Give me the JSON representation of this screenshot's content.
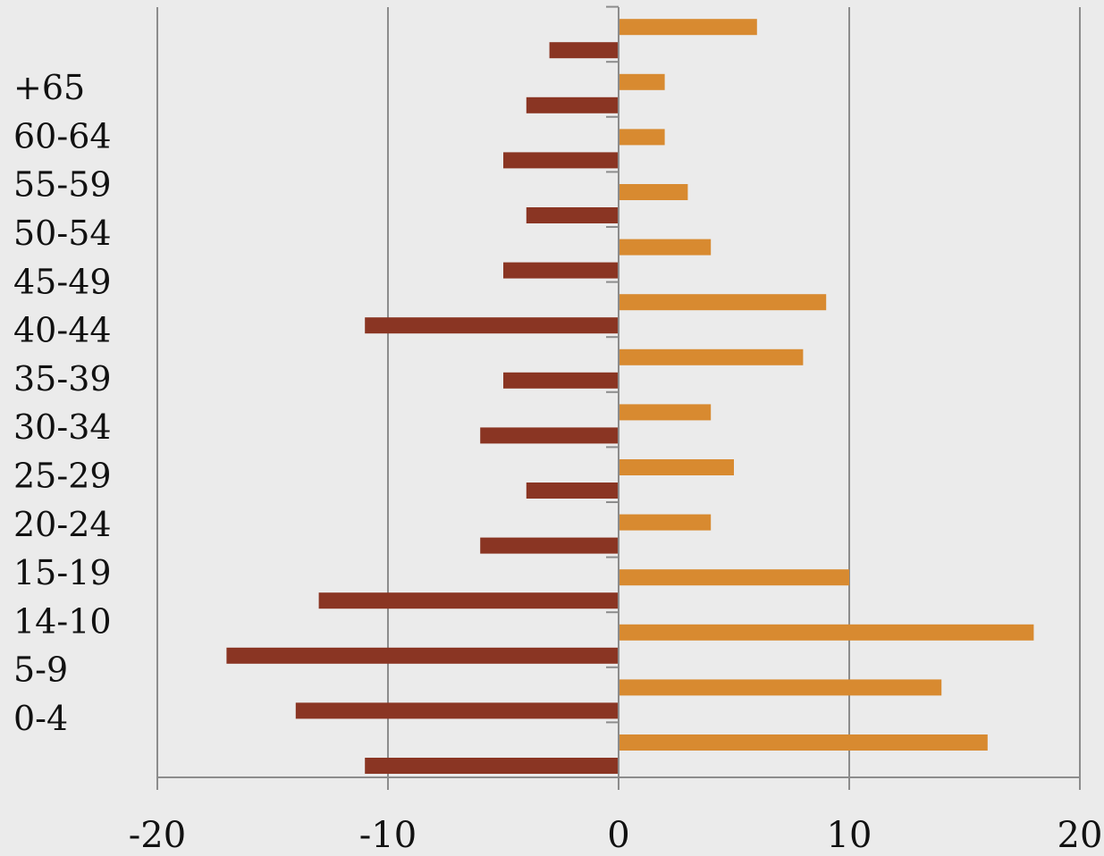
{
  "chart_data": {
    "type": "bar",
    "orientation": "horizontal",
    "categories": [
      "0-4",
      "5-9",
      "14-10",
      "15-19",
      "20-24",
      "25-29",
      "30-34",
      "35-39",
      "40-44",
      "45-49",
      "50-54",
      "55-59",
      "60-64",
      "+65"
    ],
    "series": [
      {
        "values": [
          -11,
          -14,
          -17,
          -13,
          -6,
          -4,
          -6,
          -5,
          -11,
          -5,
          -4,
          -5,
          -4,
          -3
        ]
      },
      {
        "values": [
          16,
          14,
          18,
          10,
          4,
          5,
          4,
          8,
          9,
          4,
          3,
          2,
          2,
          6
        ]
      }
    ],
    "xlim": [
      -20,
      20
    ],
    "x_ticks": [
      -20,
      -10,
      0,
      10,
      20
    ],
    "x_tick_labels": [
      "-20",
      "-10",
      "0",
      "10",
      "20"
    ],
    "grid": "vertical",
    "legend": "none",
    "colors": {
      "negative_series": "#8a3523",
      "positive_series": "#d88a30",
      "grid": "#8c8c8c",
      "axis": "#8c8c8c",
      "background": "#ebebeb"
    },
    "title": "",
    "xlabel": "",
    "ylabel": ""
  }
}
